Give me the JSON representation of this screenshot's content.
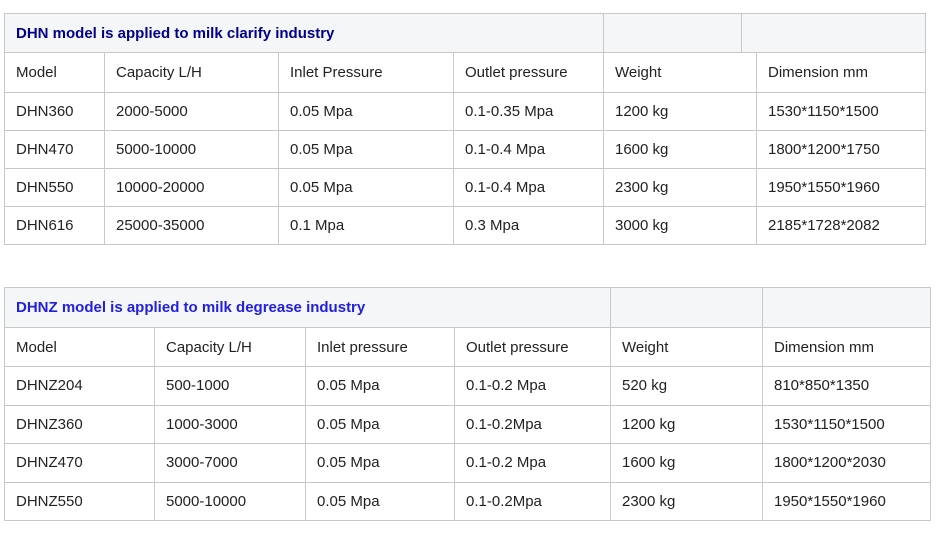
{
  "colors": {
    "border": "#c8c8c8",
    "title_row_bg": "#f5f6f8",
    "table1_title": "#00008b",
    "table2_title": "#2121dd",
    "text": "#222222"
  },
  "table1": {
    "title": "DHN model is applied to milk clarify industry",
    "headers": [
      "Model",
      "Capacity L/H",
      "Inlet Pressure",
      "Outlet pressure",
      "Weight",
      "Dimension mm"
    ],
    "rows": [
      [
        "DHN360",
        "2000-5000",
        "0.05 Mpa",
        "0.1-0.35 Mpa",
        "1200 kg",
        "1530*1150*1500"
      ],
      [
        "DHN470",
        "5000-10000",
        "0.05 Mpa",
        "0.1-0.4 Mpa",
        "1600 kg",
        "1800*1200*1750"
      ],
      [
        "DHN550",
        "10000-20000",
        "0.05 Mpa",
        "0.1-0.4 Mpa",
        "2300 kg",
        "1950*1550*1960"
      ],
      [
        "DHN616",
        "25000-35000",
        "0.1 Mpa",
        "0.3 Mpa",
        "3000 kg",
        "2185*1728*2082"
      ]
    ]
  },
  "table2": {
    "title": "DHNZ model is applied to milk degrease industry",
    "headers": [
      "Model",
      "Capacity L/H",
      "Inlet pressure",
      "Outlet pressure",
      "Weight",
      "Dimension mm"
    ],
    "rows": [
      [
        "DHNZ204",
        "500-1000",
        "0.05 Mpa",
        "0.1-0.2 Mpa",
        "520 kg",
        "810*850*1350"
      ],
      [
        "DHNZ360",
        "1000-3000",
        "0.05 Mpa",
        "0.1-0.2Mpa",
        "1200 kg",
        "1530*1150*1500"
      ],
      [
        "DHNZ470",
        "3000-7000",
        "0.05 Mpa",
        "0.1-0.2 Mpa",
        "1600 kg",
        "1800*1200*2030"
      ],
      [
        "DHNZ550",
        "5000-10000",
        "0.05 Mpa",
        "0.1-0.2Mpa",
        "2300 kg",
        "1950*1550*1960"
      ]
    ]
  }
}
